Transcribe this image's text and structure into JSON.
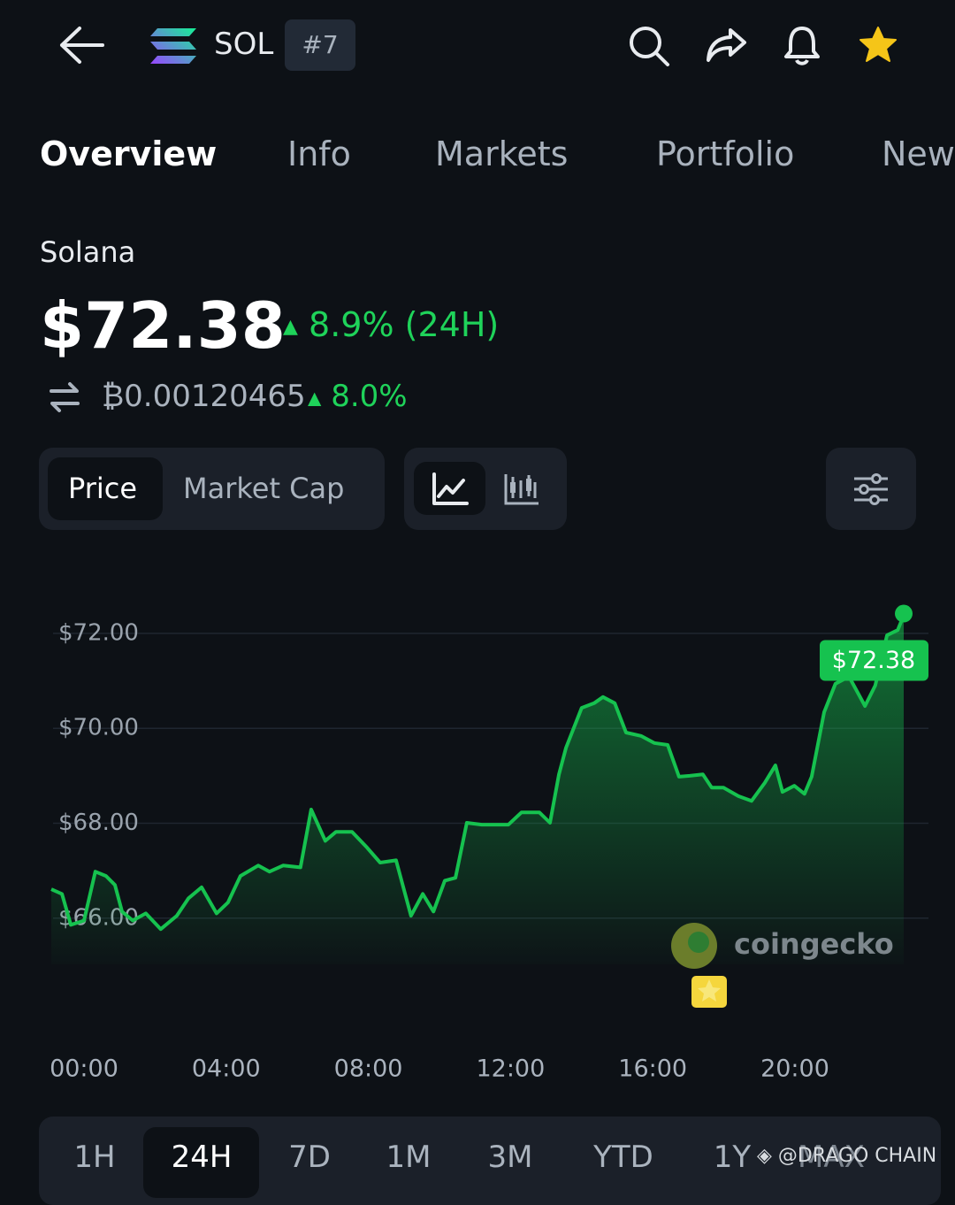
{
  "header": {
    "symbol": "SOL",
    "rank": "#7"
  },
  "tabs": [
    "Overview",
    "Info",
    "Markets",
    "Portfolio",
    "New"
  ],
  "coin": {
    "name": "Solana",
    "price": "$72.38",
    "change_24h": "8.9% (24H)",
    "btc_price": "₿0.00120465",
    "btc_change": "8.0%"
  },
  "chart_toggle": [
    "Price",
    "Market Cap"
  ],
  "chart_data": {
    "type": "line",
    "color": "#16c24f",
    "grid": true,
    "x": [
      -0.92,
      -0.62,
      -0.37,
      0,
      0.32,
      0.62,
      0.87,
      1.07,
      1.37,
      1.74,
      2.16,
      2.61,
      2.94,
      3.31,
      3.73,
      4.05,
      4.4,
      4.9,
      5.22,
      5.6,
      6.09,
      6.39,
      6.79,
      7.09,
      7.54,
      7.96,
      8.33,
      8.78,
      9.2,
      9.53,
      9.83,
      10.15,
      10.45,
      10.77,
      11.19,
      11.94,
      12.31,
      12.81,
      13.11,
      13.36,
      13.56,
      14.0,
      14.35,
      14.6,
      14.93,
      15.25,
      15.67,
      16.04,
      16.42,
      16.74,
      17.04,
      17.41,
      17.66,
      17.99,
      18.41,
      18.78,
      19.15,
      19.45,
      19.65,
      19.98,
      20.27,
      20.47,
      20.82,
      21.14,
      21.52,
      21.97,
      22.26,
      22.59,
      22.89,
      23.06
    ],
    "values": [
      66.61,
      66.51,
      65.86,
      65.95,
      66.98,
      66.89,
      66.7,
      66.14,
      65.95,
      66.1,
      65.77,
      66.05,
      66.42,
      66.65,
      66.1,
      66.33,
      66.89,
      67.11,
      66.98,
      67.11,
      67.07,
      68.29,
      67.63,
      67.82,
      67.82,
      67.49,
      67.17,
      67.22,
      66.05,
      66.51,
      66.14,
      66.79,
      66.85,
      68.01,
      67.97,
      67.97,
      68.23,
      68.23,
      68.01,
      69.03,
      69.59,
      70.43,
      70.53,
      70.66,
      70.53,
      69.91,
      69.84,
      69.69,
      69.65,
      68.98,
      69.0,
      69.03,
      68.75,
      68.75,
      68.57,
      68.47,
      68.85,
      69.22,
      68.66,
      68.79,
      68.62,
      68.98,
      70.34,
      70.94,
      71.09,
      70.47,
      70.9,
      71.96,
      72.07,
      72.38
    ],
    "last_value_label": "$72.38",
    "xlim": [
      -0.92,
      23.06
    ],
    "ylim": [
      65.4,
      72.8
    ],
    "xticks": [
      {
        "value": 0,
        "label": "00:00"
      },
      {
        "value": 4,
        "label": "04:00"
      },
      {
        "value": 8,
        "label": "08:00"
      },
      {
        "value": 12,
        "label": "12:00"
      },
      {
        "value": 16,
        "label": "16:00"
      },
      {
        "value": 20,
        "label": "20:00"
      }
    ],
    "yticks": [
      {
        "value": 66,
        "label": "$66.00"
      },
      {
        "value": 68,
        "label": "$68.00"
      },
      {
        "value": 70,
        "label": "$70.00"
      },
      {
        "value": 72,
        "label": "$72.00"
      }
    ]
  },
  "watermark": "coingecko",
  "ranges": [
    "1H",
    "24H",
    "7D",
    "1M",
    "3M",
    "YTD",
    "1Y",
    "MAX"
  ],
  "credit": "@DRAGO CHAIN"
}
